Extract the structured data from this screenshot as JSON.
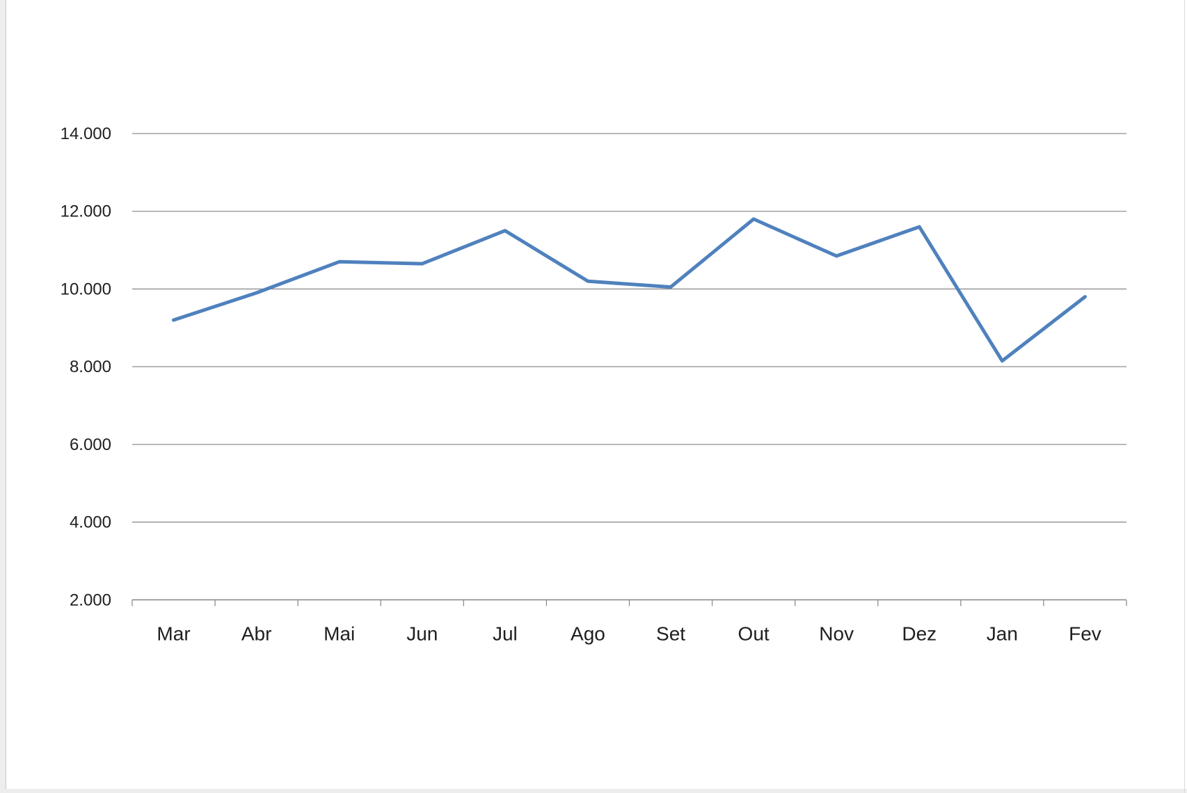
{
  "page": {
    "background_color": "#ffffff",
    "edge_color": "#ededed",
    "edge_border_color": "#c9c9c9"
  },
  "chart_data": {
    "type": "line",
    "title": "",
    "xlabel": "",
    "ylabel": "",
    "categories": [
      "Mar",
      "Abr",
      "Mai",
      "Jun",
      "Jul",
      "Ago",
      "Set",
      "Out",
      "Nov",
      "Dez",
      "Jan",
      "Fev"
    ],
    "series": [
      {
        "name": "",
        "values": [
          9200,
          9900,
          10700,
          10650,
          11500,
          10200,
          10050,
          11800,
          10850,
          11600,
          8150,
          9800
        ]
      }
    ],
    "ylim": [
      2000,
      14000
    ],
    "ytick_interval": 2000,
    "yticks": [
      2000,
      4000,
      6000,
      8000,
      10000,
      12000,
      14000
    ],
    "ytick_labels": [
      "2.000",
      "4.000",
      "6.000",
      "8.000",
      "10.000",
      "12.000",
      "14.000"
    ],
    "grid": "horizontal",
    "legend": "none",
    "line_color": "#4f81bd",
    "line_width": 5,
    "gridline_color": "#8e8e8e",
    "axis_color": "#8e8e8e",
    "label_color": "#1f1f1f"
  }
}
